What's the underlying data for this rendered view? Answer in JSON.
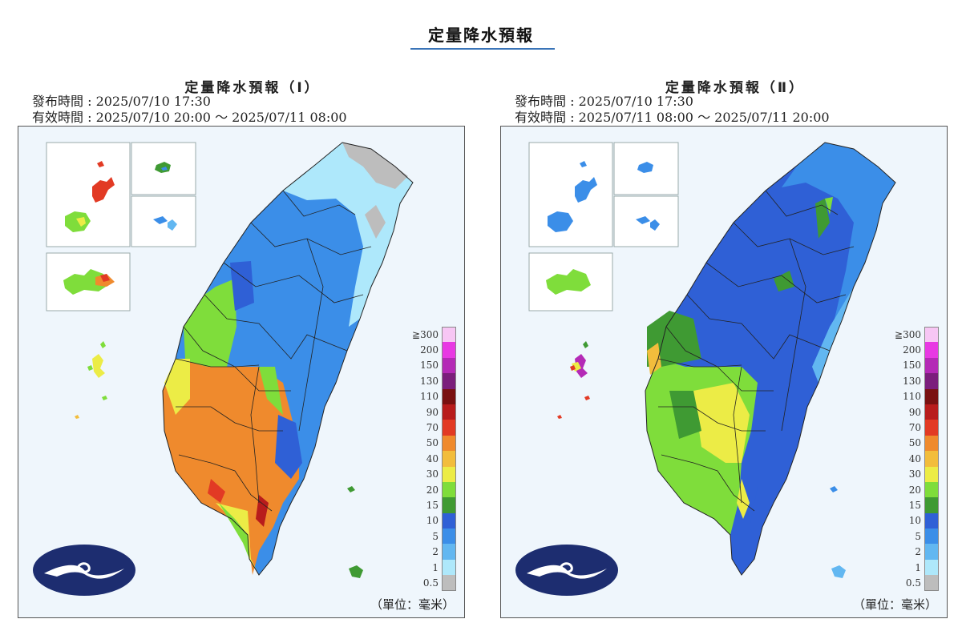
{
  "page": {
    "title": "定量降水預報"
  },
  "panels": [
    {
      "title": "定量降水預報（Ⅰ）",
      "issue_time": "發布時間 : 2025/07/10 17:30",
      "valid_time": "有效時間 : 2025/07/10 20:00 ～ 2025/07/11 08:00",
      "unit": "（單位：毫米）"
    },
    {
      "title": "定量降水預報（Ⅱ）",
      "issue_time": "發布時間 : 2025/07/10 17:30",
      "valid_time": "有效時間 : 2025/07/11 08:00 ～ 2025/07/11 20:00",
      "unit": "（單位：毫米）"
    }
  ],
  "legend": {
    "levels": [
      "≧300",
      "200",
      "150",
      "130",
      "110",
      "90",
      "70",
      "50",
      "40",
      "30",
      "20",
      "15",
      "10",
      "5",
      "2",
      "1",
      "0.5"
    ],
    "colors": [
      "#f7c6f4",
      "#e839e3",
      "#b42ab6",
      "#7b1e7c",
      "#7a1111",
      "#b81c1c",
      "#e23a24",
      "#ef8a2d",
      "#f2bd3c",
      "#ecec46",
      "#7fdd3b",
      "#3f9a33",
      "#2f60d6",
      "#3b8ee8",
      "#62b7f1",
      "#aee8fb",
      "#bdbdbd"
    ]
  }
}
